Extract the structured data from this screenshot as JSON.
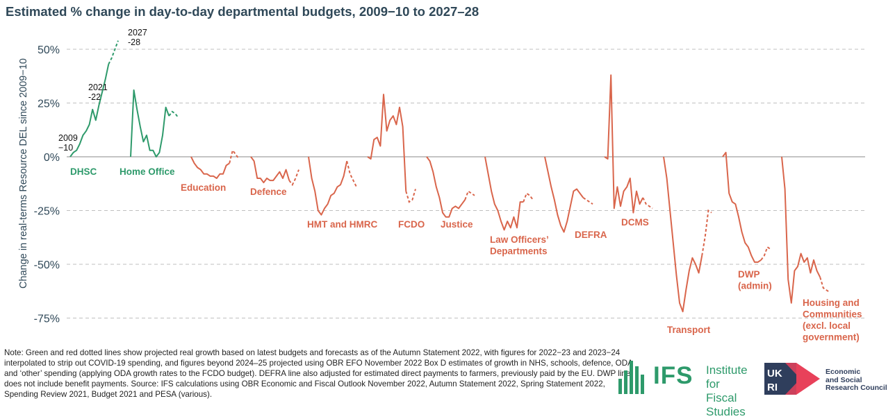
{
  "title": "Estimated % change in day-to-day departmental budgets, 2009−10 to 2027–28",
  "note": "Note: Green and red dotted lines show projected real growth based on latest budgets and forecasts as of the Autumn Statement 2022, with figures for 2022−23 and 2023−24 interpolated to strip out COVID-19 spending, and figures beyond 2024–25 projected using OBR EFO November 2022 Box D estimates of growth in NHS, schools, defence, ODA and ‘other’ spending (applying ODA growth rates to the FCDO budget). DEFRA line also adjusted for estimated direct payments to farmers, previously paid by the EU. DWP line does not include benefit payments. Source: IFS calculations using OBR Economic and Fiscal Outlook November 2022, Autumn Statement 2022, Spring Statement 2022, Spending Review 2021, Budget 2021 and PESA (various).",
  "logos": {
    "ifs_mark": "IFS",
    "ifs_name_line1": "Institute for",
    "ifs_name_line2": "Fiscal Studies",
    "ukri_mark": "UKRI",
    "ukri_line1": "Economic",
    "ukri_line2": "and Social",
    "ukri_line3": "Research Council"
  },
  "chart_data": {
    "type": "line",
    "title": "Estimated % change in day-to-day departmental budgets, 2009−10 to 2027–28",
    "ylabel": "Change in real-terms Resource DEL since 2009−10",
    "xlabel": "",
    "ylim": [
      -80,
      55
    ],
    "yticks": [
      50,
      25,
      0,
      -25,
      -50,
      -75
    ],
    "ytick_labels": [
      "50%",
      "25%",
      "0%",
      "-25%",
      "-50%",
      "-75%"
    ],
    "grid": "horizontal dashed",
    "colors": {
      "increase": "#2e9a6b",
      "decrease": "#d9654b",
      "grid": "#bfbfbf",
      "axis": "#888888"
    },
    "solid_period": "2009−10 to 2022−23",
    "dashed_period": "2022−23 to 2027–28 (projected)",
    "annotations": [
      {
        "series": "DHSC",
        "year_index": 0,
        "label_line1": "2009",
        "label_line2": "−10"
      },
      {
        "series": "DHSC",
        "year_index": 12,
        "label_line1": "2021",
        "label_line2": "-22"
      },
      {
        "series": "DHSC",
        "year_index": 18,
        "label_line1": "2027",
        "label_line2": "-28"
      }
    ],
    "series": [
      {
        "name": "DHSC",
        "label_lines": [
          "DHSC"
        ],
        "color": "#2e9a6b",
        "solid": [
          0,
          2,
          3,
          6,
          10,
          12,
          15,
          22,
          17,
          24,
          30,
          36,
          43
        ],
        "dashed": [
          43,
          46,
          50,
          54
        ]
      },
      {
        "name": "Home Office",
        "label_lines": [
          "Home Office"
        ],
        "color": "#2e9a6b",
        "solid": [
          0,
          31,
          22,
          14,
          7,
          10,
          3,
          3,
          0,
          2,
          10,
          23,
          19
        ],
        "dashed": [
          19,
          21,
          20,
          18
        ]
      },
      {
        "name": "Education",
        "label_lines": [
          "Education"
        ],
        "color": "#d9654b",
        "solid": [
          0,
          -3,
          -5,
          -6,
          -8,
          -8,
          -9,
          -9,
          -10,
          -8,
          -8,
          -4,
          -3
        ],
        "dashed": [
          -3,
          3,
          1,
          -1
        ]
      },
      {
        "name": "Defence",
        "label_lines": [
          "Defence"
        ],
        "color": "#d9654b",
        "solid": [
          0,
          -2,
          -10,
          -10,
          -12,
          -10,
          -11,
          -11,
          -9,
          -7,
          -10,
          -6,
          -11
        ],
        "dashed": [
          -11,
          -13,
          -10,
          -6
        ]
      },
      {
        "name": "HMT and HMRC",
        "label_lines": [
          "HMT and HMRC"
        ],
        "color": "#d9654b",
        "solid": [
          0,
          -10,
          -16,
          -25,
          -27,
          -24,
          -22,
          -18,
          -17,
          -14,
          -13,
          -9,
          -2
        ],
        "dashed": [
          -2,
          -8,
          -11,
          -14
        ]
      },
      {
        "name": "FCDO",
        "label_lines": [
          "FCDO"
        ],
        "color": "#d9654b",
        "solid": [
          0,
          -1,
          8,
          9,
          5,
          29,
          12,
          17,
          19,
          15,
          23,
          14,
          -16
        ],
        "dashed": [
          -16,
          -21,
          -20,
          -15
        ]
      },
      {
        "name": "Justice",
        "label_lines": [
          "Justice"
        ],
        "color": "#d9654b",
        "solid": [
          0,
          -2,
          -7,
          -14,
          -19,
          -26,
          -28,
          -28,
          -24,
          -23,
          -24,
          -22,
          -20
        ],
        "dashed": [
          -20,
          -16,
          -17,
          -18
        ]
      },
      {
        "name": "Law Officers' Departments",
        "label_lines": [
          "Law Officers’",
          "Departments"
        ],
        "color": "#d9654b",
        "solid": [
          0,
          -8,
          -16,
          -22,
          -25,
          -30,
          -34,
          -30,
          -33,
          -28,
          -33,
          -21,
          -21
        ],
        "dashed": [
          -21,
          -17,
          -18,
          -20
        ]
      },
      {
        "name": "DEFRA",
        "label_lines": [
          "DEFRA"
        ],
        "color": "#d9654b",
        "solid": [
          0,
          -7,
          -14,
          -20,
          -27,
          -32,
          -35,
          -30,
          -23,
          -16,
          -15,
          -17,
          -19
        ],
        "dashed": [
          -19,
          -20,
          -21,
          -22
        ]
      },
      {
        "name": "DCMS",
        "label_lines": [
          "DCMS"
        ],
        "color": "#d9654b",
        "solid": [
          0,
          -1,
          38,
          -24,
          -14,
          -23,
          -16,
          -14,
          -10,
          -26,
          -16,
          -22,
          -19
        ],
        "dashed": [
          -19,
          -22,
          -23,
          -24
        ]
      },
      {
        "name": "Transport",
        "label_lines": [
          "Transport"
        ],
        "color": "#d9654b",
        "solid": [
          0,
          -10,
          -25,
          -40,
          -55,
          -68,
          -72,
          -62,
          -53,
          -47,
          -50,
          -54,
          -46
        ],
        "dashed": [
          -46,
          -37,
          -25,
          -26
        ]
      },
      {
        "name": "DWP (admin)",
        "label_lines": [
          "DWP",
          "(admin)"
        ],
        "color": "#d9654b",
        "solid": [
          0,
          2,
          -17,
          -21,
          -22,
          -28,
          -35,
          -40,
          -42,
          -46,
          -49,
          -49,
          -48
        ],
        "dashed": [
          -48,
          -46,
          -42,
          -43
        ]
      },
      {
        "name": "Housing and Communities (excl. local government)",
        "label_lines": [
          "Housing and",
          "Communities",
          "(excl. local",
          "government)"
        ],
        "color": "#d9654b",
        "solid": [
          0,
          -15,
          -57,
          -68,
          -53,
          -51,
          -45,
          -49,
          -47,
          -54,
          -48,
          -53,
          -56
        ],
        "dashed": [
          -56,
          -61,
          -62,
          -63
        ]
      }
    ]
  }
}
